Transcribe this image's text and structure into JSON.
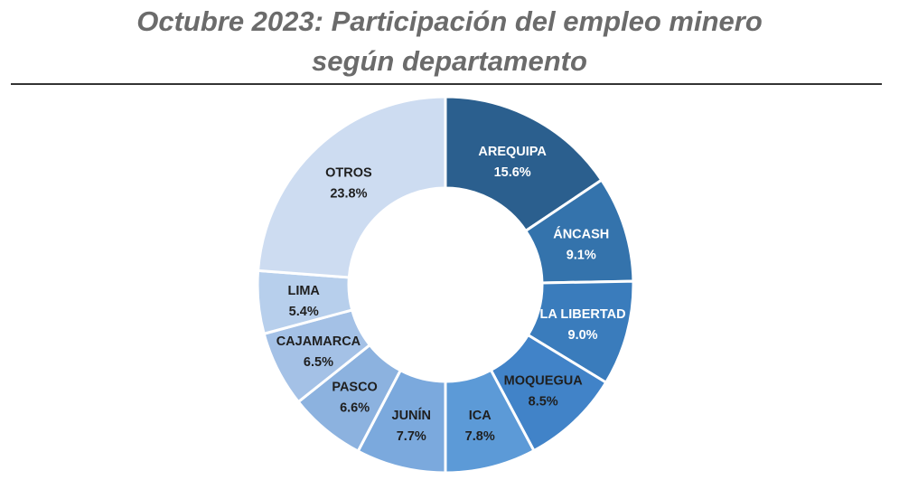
{
  "chart_data": {
    "type": "pie",
    "variant": "donut",
    "title_lines": [
      "Octubre 2023: Participación del empleo minero",
      "según departamento"
    ],
    "categories": [
      "AREQUIPA",
      "ÁNCASH",
      "LA LIBERTAD",
      "MOQUEGUA",
      "ICA",
      "JUNÍN",
      "PASCO",
      "CAJAMARCA",
      "LIMA",
      "OTROS"
    ],
    "values": [
      15.6,
      9.1,
      9.0,
      8.5,
      7.8,
      7.7,
      6.6,
      6.5,
      5.4,
      23.8
    ],
    "value_labels": [
      "15.6%",
      "9.1%",
      "9.0%",
      "8.5%",
      "7.8%",
      "7.7%",
      "6.6%",
      "6.5%",
      "5.4%",
      "23.8%"
    ],
    "unit": "%",
    "colors": [
      "#2b5f8e",
      "#3473ac",
      "#3a7cbc",
      "#4183c8",
      "#5c9ad7",
      "#7ba9dd",
      "#8cb2df",
      "#a4c1e6",
      "#b7cfec",
      "#cddcf1"
    ],
    "label_colors": [
      "#ffffff",
      "#ffffff",
      "#ffffff",
      "#1f1f1f",
      "#1f1f1f",
      "#1f1f1f",
      "#1f1f1f",
      "#1f1f1f",
      "#1f1f1f",
      "#1f1f1f"
    ]
  }
}
